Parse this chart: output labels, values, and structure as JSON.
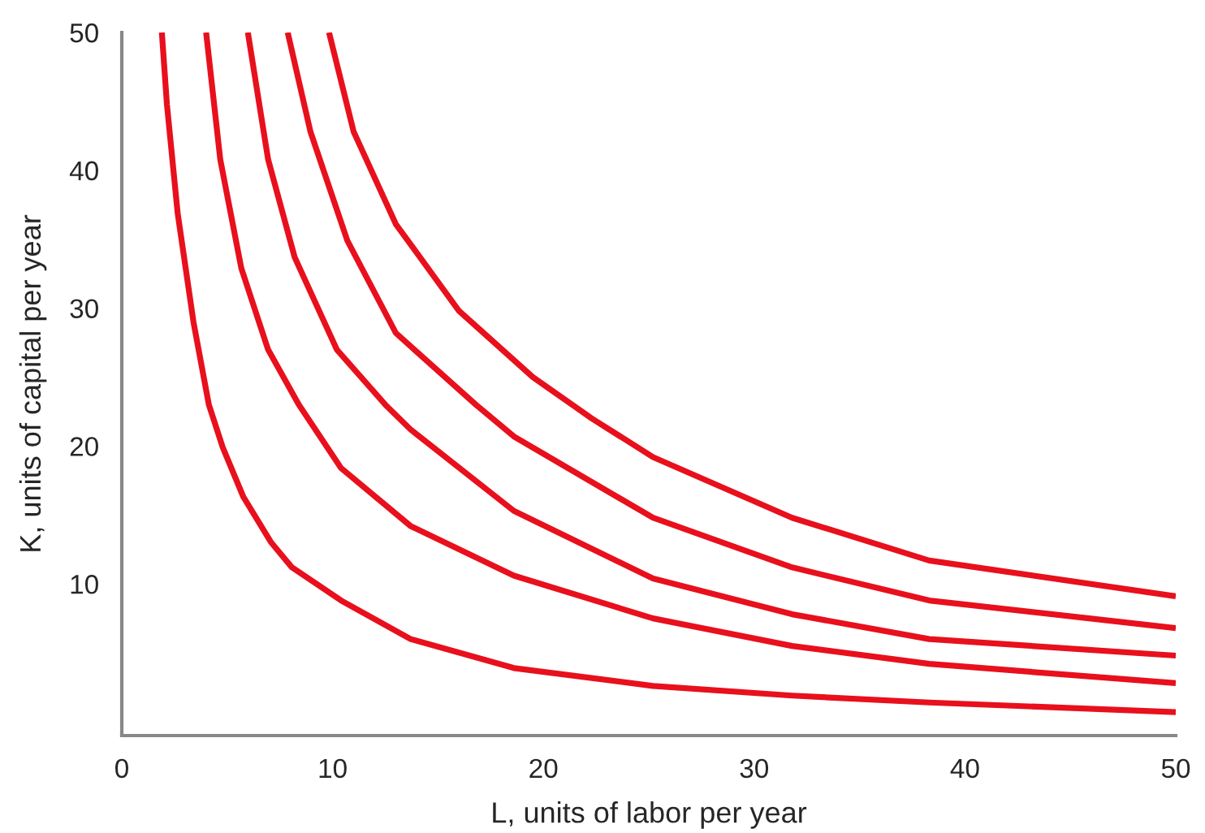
{
  "chart_data": {
    "type": "line",
    "xlabel": "L, units of labor per year",
    "ylabel": "K, units of capital per year",
    "xlim": [
      0,
      50
    ],
    "ylim": [
      -1,
      50
    ],
    "xticks": [
      0,
      10,
      20,
      30,
      40,
      50
    ],
    "yticks": [
      10,
      20,
      30,
      40,
      50
    ],
    "grid": false,
    "marker": "none",
    "line_style": "solid",
    "series": [
      {
        "color": "#e8101c",
        "x": [
          1.9,
          2.14,
          2.65,
          3.4,
          4.13,
          4.79,
          5.77,
          7.09,
          8.07,
          10.4,
          13.7,
          18.6,
          25.2,
          31.8,
          38.3,
          50
        ],
        "values": [
          50,
          44.8,
          36.9,
          29.0,
          23.0,
          19.9,
          16.3,
          13.0,
          11.2,
          8.8,
          6.0,
          3.9,
          2.6,
          1.9,
          1.4,
          0.7
        ]
      },
      {
        "color": "#e8101c",
        "x": [
          4.0,
          4.67,
          5.67,
          6.94,
          8.4,
          10.4,
          13.7,
          18.6,
          25.2,
          31.8,
          38.3,
          50
        ],
        "values": [
          50,
          40.8,
          32.9,
          27.0,
          23.0,
          18.4,
          14.2,
          10.6,
          7.5,
          5.5,
          4.2,
          2.8
        ]
      },
      {
        "color": "#e8101c",
        "x": [
          5.98,
          6.94,
          8.2,
          10.2,
          12.5,
          13.7,
          18.6,
          25.2,
          31.8,
          38.3,
          50
        ],
        "values": [
          50,
          40.8,
          33.7,
          27.0,
          23.0,
          21.2,
          15.3,
          10.4,
          7.8,
          6.0,
          4.8
        ]
      },
      {
        "color": "#e8101c",
        "x": [
          7.87,
          8.95,
          10.7,
          13.0,
          16.8,
          18.6,
          25.2,
          31.8,
          38.3,
          50
        ],
        "values": [
          50,
          42.8,
          34.9,
          28.2,
          23.0,
          20.7,
          14.8,
          11.2,
          8.8,
          6.8
        ]
      },
      {
        "color": "#e8101c",
        "x": [
          9.83,
          11.0,
          13.0,
          16.0,
          19.5,
          22.3,
          25.2,
          31.8,
          38.3,
          50
        ],
        "values": [
          50,
          42.8,
          36.1,
          29.8,
          25.0,
          22.0,
          19.2,
          14.8,
          11.7,
          9.1
        ]
      }
    ]
  }
}
